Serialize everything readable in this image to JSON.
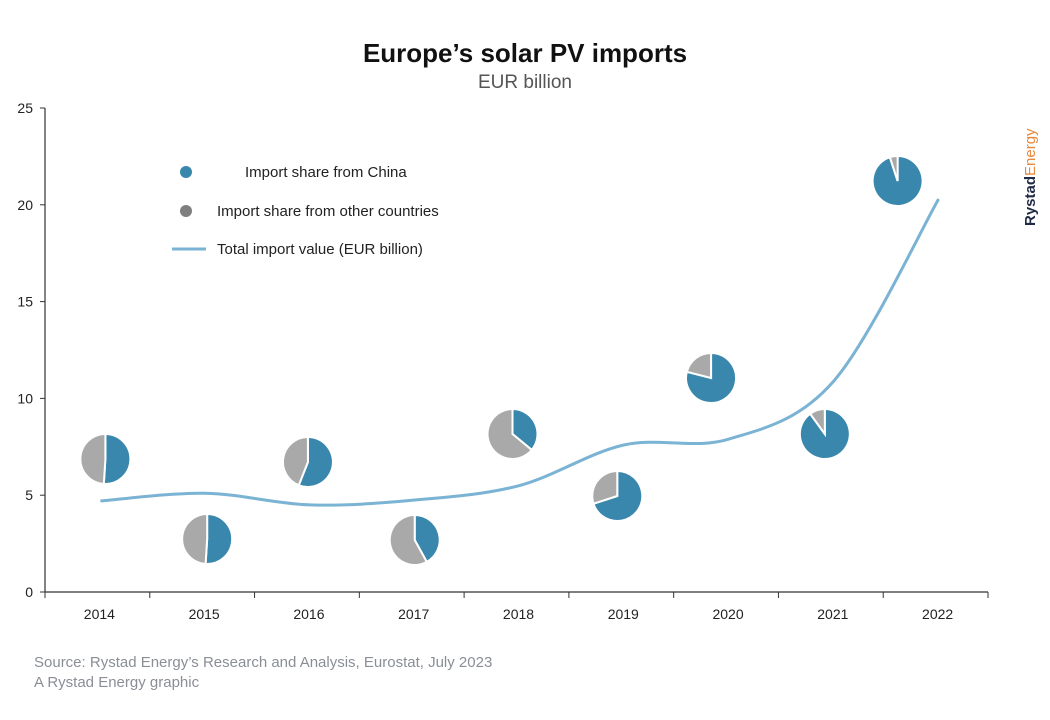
{
  "chart_data": {
    "type": "line",
    "title": "Europe’s solar PV imports",
    "subtitle": "EUR billion",
    "categories": [
      "2014",
      "2015",
      "2016",
      "2017",
      "2018",
      "2019",
      "2020",
      "2021",
      "2022"
    ],
    "ylim": [
      0,
      25
    ],
    "yticks": [
      "0",
      "5",
      "10",
      "15",
      "20",
      "25"
    ],
    "grid": false,
    "series": [
      {
        "name": "Total import value (EUR billion)",
        "type": "line",
        "color": "#7ab3d3",
        "values": [
          4.7,
          5.1,
          4.5,
          4.75,
          5.5,
          7.6,
          7.9,
          10.9,
          20.3
        ]
      },
      {
        "name": "Import share from China",
        "type": "pie-share",
        "color": "#3a87ad",
        "values": [
          0.51,
          0.51,
          0.56,
          0.42,
          0.36,
          0.7,
          0.79,
          0.9,
          0.95
        ]
      },
      {
        "name": "Import share from other countries",
        "type": "pie-share",
        "color": "#a9a9a9",
        "values": [
          0.49,
          0.49,
          0.44,
          0.58,
          0.64,
          0.3,
          0.21,
          0.1,
          0.05
        ]
      }
    ],
    "legend": {
      "placement": "top-left",
      "items": [
        {
          "label": "Import share from China",
          "color": "#3a87ad"
        },
        {
          "label": "Import share from other countries",
          "color": "#7f7f7f"
        },
        {
          "label": "Total import value (EUR billion)",
          "color": "#7ab3d3"
        }
      ]
    }
  },
  "footer": {
    "source": "Source: Rystad Energy’s Research and Analysis, Eurostat, July 2023",
    "credit": "A Rystad Energy graphic"
  },
  "logo": {
    "part1": "Rystad",
    "part2": "Energy",
    "color1": "#1f2a44",
    "color2": "#e8883a"
  }
}
